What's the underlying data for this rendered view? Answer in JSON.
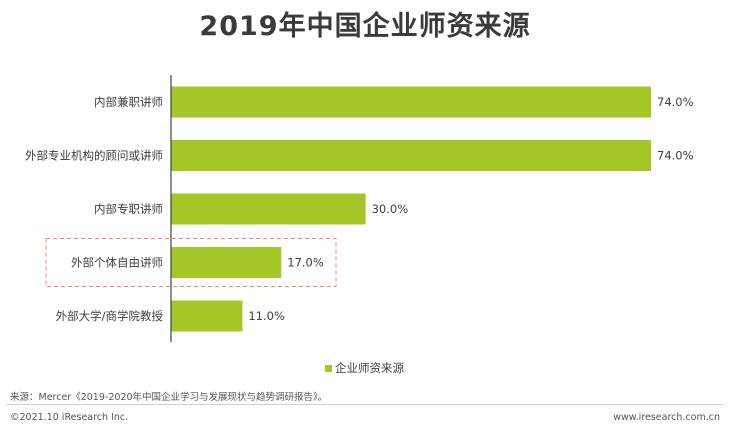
{
  "title": "2019年中国企业师资来源",
  "chart_data": {
    "type": "bar",
    "orientation": "horizontal",
    "categories": [
      "内部兼职讲师",
      "外部专业机构的顾问或讲师",
      "内部专职讲师",
      "外部个体自由讲师",
      "外部大学/商学院教授"
    ],
    "series": [
      {
        "name": "企业师资来源",
        "values": [
          74.0,
          74.0,
          30.0,
          17.0,
          11.0
        ],
        "color": "#a4c626"
      }
    ],
    "value_labels": [
      "74.0%",
      "74.0%",
      "30.0%",
      "17.0%",
      "11.0%"
    ],
    "unit": "%",
    "xlim": [
      0,
      74
    ],
    "grid": false,
    "legend": "bottom",
    "highlight_category": "外部个体自由讲师",
    "highlight_color": "#f08080"
  },
  "source": "来源：Mercer《2019-2020年中国企业学习与发展现状与趋势调研报告》。",
  "footer": {
    "copyright": "©2021.10 iResearch Inc.",
    "website": "www.iresearch.com.cn"
  }
}
